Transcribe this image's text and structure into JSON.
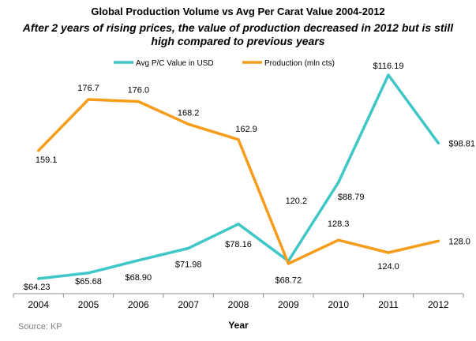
{
  "chart_data": {
    "type": "line",
    "title": "Global Production Volume vs  Avg Per Carat Value 2004-2012",
    "subtitle": "After 2 years of rising prices, the value of production decreased  in 2012 but is still high compared to previous years",
    "xlabel": "Year",
    "ylabel": "",
    "x": [
      "2004",
      "2005",
      "2006",
      "2007",
      "2008",
      "2009",
      "2010",
      "2011",
      "2012"
    ],
    "series": [
      {
        "name": "Avg P/C Value in USD",
        "color": "#3fc6c6",
        "values": [
          64.23,
          65.68,
          68.9,
          71.98,
          78.16,
          68.72,
          88.79,
          116.19,
          98.81
        ],
        "labels": [
          "$64.23",
          "$65.68",
          "$68.90",
          "$71.98",
          "$78.16",
          "$68.72",
          "$88.79",
          "$116.19",
          "$98.81"
        ]
      },
      {
        "name": "Production (mln cts)",
        "color": "#f59c1a",
        "values": [
          159.1,
          176.7,
          176.0,
          168.2,
          162.9,
          120.2,
          128.3,
          124.0,
          128.0
        ],
        "labels": [
          "159.1",
          "176.7",
          "176.0",
          "168.2",
          "162.9",
          "120.2",
          "128.3",
          "124.0",
          "128.0"
        ]
      }
    ],
    "legend": "top",
    "grid": false
  },
  "source": "Source: KP"
}
